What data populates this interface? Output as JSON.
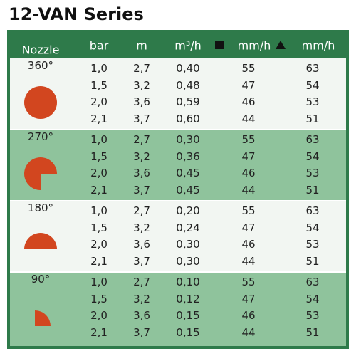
{
  "title": "12-VAN Series",
  "table": {
    "header": [
      "Nozzle",
      "bar",
      "m",
      "m³/h",
      "mm/h",
      "mm/h"
    ],
    "groups": [
      {
        "label": "360°",
        "rows": [
          [
            "1,0",
            "2,7",
            "0,40",
            "55",
            "63"
          ],
          [
            "1,5",
            "3,2",
            "0,48",
            "47",
            "54"
          ],
          [
            "2,0",
            "3,6",
            "0,59",
            "46",
            "53"
          ],
          [
            "2,1",
            "3,7",
            "0,60",
            "44",
            "51"
          ]
        ]
      },
      {
        "label": "270°",
        "rows": [
          [
            "1,0",
            "2,7",
            "0,30",
            "55",
            "63"
          ],
          [
            "1,5",
            "3,2",
            "0,36",
            "47",
            "54"
          ],
          [
            "2,0",
            "3,6",
            "0,45",
            "46",
            "53"
          ],
          [
            "2,1",
            "3,7",
            "0,45",
            "44",
            "51"
          ]
        ]
      },
      {
        "label": "180°",
        "rows": [
          [
            "1,0",
            "2,7",
            "0,20",
            "55",
            "63"
          ],
          [
            "1,5",
            "3,2",
            "0,24",
            "47",
            "54"
          ],
          [
            "2,0",
            "3,6",
            "0,30",
            "46",
            "53"
          ],
          [
            "2,1",
            "3,7",
            "0,30",
            "44",
            "51"
          ]
        ]
      },
      {
        "label": "90°",
        "rows": [
          [
            "1,0",
            "2,7",
            "0,10",
            "55",
            "63"
          ],
          [
            "1,5",
            "3,2",
            "0,12",
            "47",
            "54"
          ],
          [
            "2,0",
            "3,6",
            "0,15",
            "46",
            "53"
          ],
          [
            "2,1",
            "3,7",
            "0,15",
            "44",
            "51"
          ]
        ]
      }
    ]
  }
}
